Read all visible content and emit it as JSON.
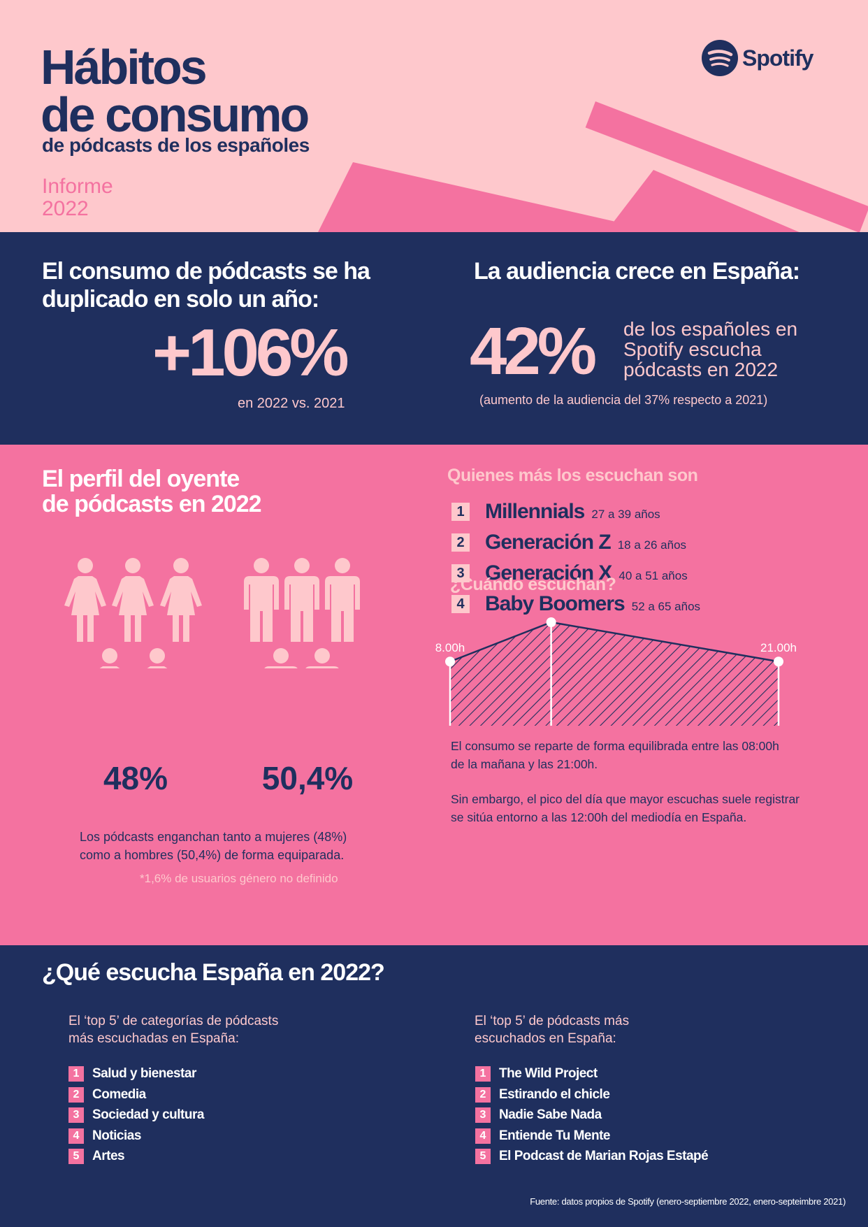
{
  "header": {
    "title_line1": "Hábitos",
    "title_line2": "de consumo",
    "subtitle": "de pódcasts de los españoles",
    "report_line1": "Informe",
    "report_line2": "2022",
    "brand": "Spotify"
  },
  "growth": {
    "heading_line1": "El consumo de pódcasts se ha",
    "heading_line2": "duplicado en solo un año:",
    "value": "+106%",
    "caption": "en 2022 vs. 2021"
  },
  "audience": {
    "heading": "La audiencia crece en España:",
    "value": "42%",
    "desc_line1": "de los españoles en",
    "desc_line2": "Spotify escucha",
    "desc_line3": "pódcasts en 2022",
    "note": "(aumento de la audiencia del 37% respecto a 2021)"
  },
  "profile": {
    "heading_line1": "El perfil del oyente",
    "heading_line2": "de pódcasts en 2022",
    "female_pct": "48%",
    "male_pct": "50,4%",
    "desc_line1": "Los pódcasts enganchan tanto a mujeres (48%)",
    "desc_line2": "como a hombres (50,4%) de forma equiparada.",
    "footnote": "*1,6% de usuarios género no definido"
  },
  "generations": {
    "heading": "Quienes más los escuchan son",
    "items": [
      {
        "rank": "1",
        "name": "Millennials",
        "age": "27 a 39 años"
      },
      {
        "rank": "2",
        "name": "Generación Z",
        "age": "18 a 26 años"
      },
      {
        "rank": "3",
        "name": "Generación X",
        "age": "40 a 51 años"
      },
      {
        "rank": "4",
        "name": "Baby Boomers",
        "age": "52 a 65 años"
      }
    ]
  },
  "when": {
    "heading": "¿Cuándo escuchan?",
    "text1_line1": "El consumo se reparte de forma equilibrada entre las 08:00h",
    "text1_line2": "de la mañana y las 21:00h.",
    "text2_line1": "Sin embargo, el pico del día que mayor escuchas suele registrar",
    "text2_line2": "se sitúa entorno a las 12:00h del mediodía en España."
  },
  "chart_data": {
    "type": "area",
    "x": [
      "8.00h",
      "12.00h",
      "21.00h"
    ],
    "x_hours": [
      8,
      12,
      21
    ],
    "values": [
      0.62,
      1.0,
      0.62
    ],
    "title": "",
    "xlabel": "",
    "ylabel": "",
    "grid": false,
    "fill_pattern": "diagonal-hatch"
  },
  "what": {
    "heading": "¿Qué escucha España en 2022?",
    "categories_heading_line1": "El ‘top 5’ de categorías de pódcasts",
    "categories_heading_line2": "más escuchadas en España:",
    "categories": [
      {
        "rank": "1",
        "label": "Salud y bienestar"
      },
      {
        "rank": "2",
        "label": "Comedia"
      },
      {
        "rank": "3",
        "label": "Sociedad y cultura"
      },
      {
        "rank": "4",
        "label": "Noticias"
      },
      {
        "rank": "5",
        "label": "Artes"
      }
    ],
    "podcasts_heading_line1": "El ‘top 5’ de pódcasts más",
    "podcasts_heading_line2": "escuchados en España:",
    "podcasts": [
      {
        "rank": "1",
        "label": "The Wild Project"
      },
      {
        "rank": "2",
        "label": "Estirando el chicle"
      },
      {
        "rank": "3",
        "label": "Nadie Sabe Nada"
      },
      {
        "rank": "4",
        "label": "Entiende Tu Mente"
      },
      {
        "rank": "5",
        "label": "El Podcast de Marian Rojas Estapé"
      }
    ],
    "source": "Fuente: datos propios de Spotify (enero-septiembre 2022, enero-septeimbre 2021)"
  },
  "colors": {
    "navy": "#1F2F5E",
    "pink": "#F472A0",
    "light_pink": "#FEC8CC",
    "white": "#FFFFFF"
  },
  "icons": [
    "spotify-logo-icon",
    "woman-icon",
    "man-icon"
  ]
}
